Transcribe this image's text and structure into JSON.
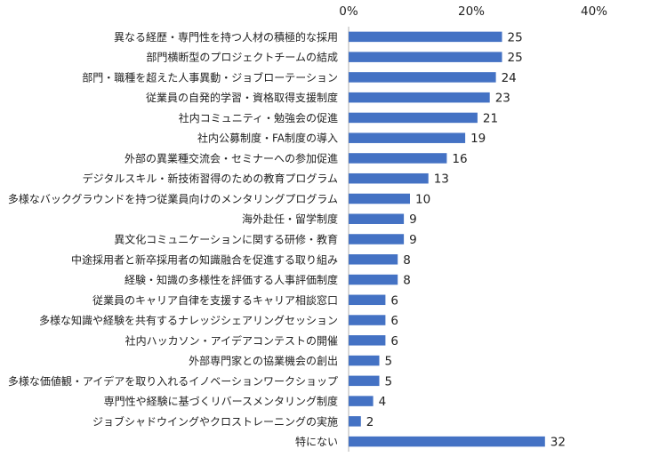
{
  "chart_data": {
    "type": "bar",
    "orientation": "horizontal",
    "title": "",
    "xlabel": "",
    "ylabel": "",
    "xlim": [
      0,
      40
    ],
    "tick_labels": [
      "0%",
      "20%",
      "40%"
    ],
    "x_axis_position": "top",
    "grid": false,
    "legend": "none",
    "bar_color": "#4472C4",
    "categories": [
      "異なる経歴・専門性を持つ人材の積極的な採用",
      "部門横断型のプロジェクトチームの結成",
      "部門・職種を超えた人事異動・ジョブローテーション",
      "従業員の自発的学習・資格取得支援制度",
      "社内コミュニティ・勉強会の促進",
      "社内公募制度・FA制度の導入",
      "外部の異業種交流会・セミナーへの参加促進",
      "デジタルスキル・新技術習得のための教育プログラム",
      "多様なバックグラウンドを持つ従業員向けのメンタリングプログラム",
      "海外赴任・留学制度",
      "異文化コミュニケーションに関する研修・教育",
      "中途採用者と新卒採用者の知識融合を促進する取り組み",
      "経験・知識の多様性を評価する人事評価制度",
      "従業員のキャリア自律を支援するキャリア相談窓口",
      "多様な知識や経験を共有するナレッジシェアリングセッション",
      "社内ハッカソン・アイデアコンテストの開催",
      "外部専門家との協業機会の創出",
      "多様な価値観・アイデアを取り入れるイノベーションワークショップ",
      "専門性や経験に基づくリバースメンタリング制度",
      "ジョブシャドウイングやクロストレーニングの実施",
      "特にない"
    ],
    "values": [
      25,
      25,
      24,
      23,
      21,
      19,
      16,
      13,
      10,
      9,
      9,
      8,
      8,
      6,
      6,
      6,
      5,
      5,
      4,
      2,
      32
    ],
    "data_labels": [
      "25",
      "25",
      "24",
      "23",
      "21",
      "19",
      "16",
      "13",
      "10",
      "9",
      "9",
      "8",
      "8",
      "6",
      "6",
      "6",
      "5",
      "5",
      "4",
      "2",
      "32"
    ]
  }
}
